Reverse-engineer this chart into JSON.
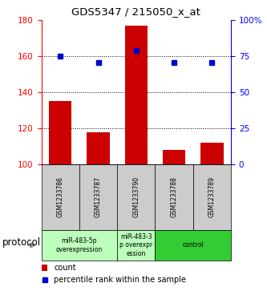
{
  "title": "GDS5347 / 215050_x_at",
  "samples": [
    "GSM1233786",
    "GSM1233787",
    "GSM1233790",
    "GSM1233788",
    "GSM1233789"
  ],
  "counts": [
    135,
    118,
    177,
    108,
    112
  ],
  "percentiles": [
    75,
    71,
    79,
    71,
    71
  ],
  "ylim_left": [
    100,
    180
  ],
  "ylim_right": [
    0,
    100
  ],
  "yticks_left": [
    100,
    120,
    140,
    160,
    180
  ],
  "yticks_right": [
    0,
    25,
    50,
    75,
    100
  ],
  "ytick_right_labels": [
    "0",
    "25",
    "50",
    "75",
    "100%"
  ],
  "bar_color": "#cc0000",
  "dot_color": "#0000cc",
  "bar_width": 0.6,
  "groups": [
    {
      "start": 0,
      "end": 1,
      "label": "miR-483-5p\noverexpression",
      "color": "#bbffbb"
    },
    {
      "start": 2,
      "end": 2,
      "label": "miR-483-3\np overexpr\nession",
      "color": "#bbffbb"
    },
    {
      "start": 3,
      "end": 4,
      "label": "control",
      "color": "#33cc33"
    }
  ],
  "protocol_label": "protocol",
  "legend_count": "count",
  "legend_pct": "percentile rank within the sample"
}
